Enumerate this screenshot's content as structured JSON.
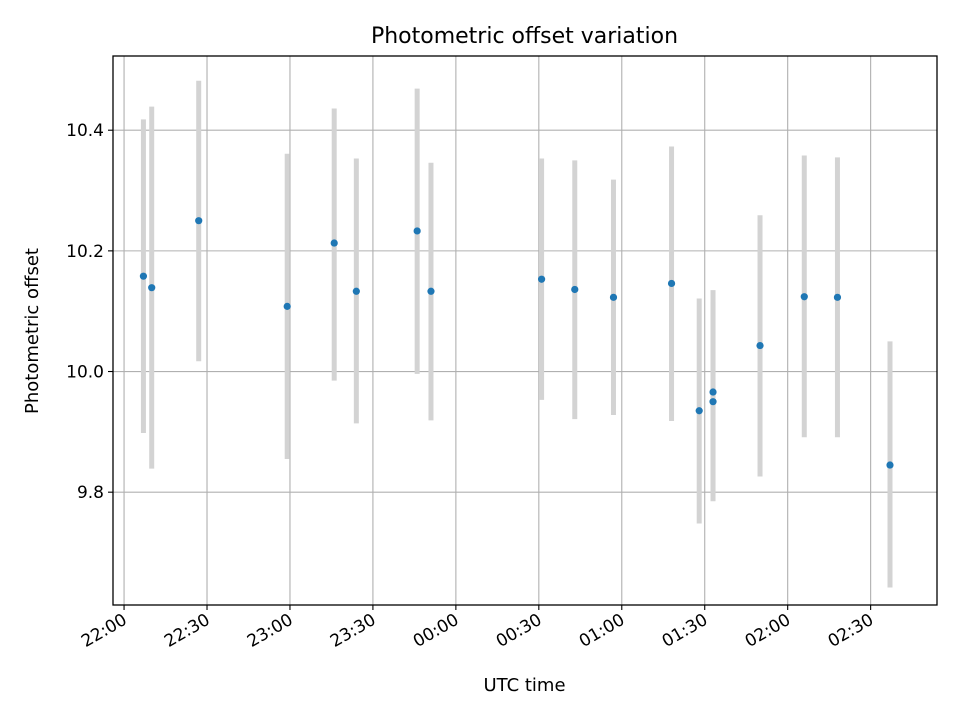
{
  "chart_data": {
    "type": "scatter",
    "title": "Photometric offset variation",
    "xlabel": "UTC time",
    "ylabel": "Photometric offset",
    "x_type": "time",
    "x_start_label": "22:00",
    "xlim_minutes": [
      -4,
      294
    ],
    "ylim": [
      9.613,
      10.523
    ],
    "y_ticks": [
      9.8,
      10.0,
      10.2,
      10.4
    ],
    "y_tick_labels": [
      "9.8",
      "10.0",
      "10.2",
      "10.4"
    ],
    "x_ticks": [
      "22:00",
      "22:30",
      "23:00",
      "23:30",
      "00:00",
      "00:30",
      "01:00",
      "01:30",
      "02:00",
      "02:30"
    ],
    "grid": true,
    "marker_color": "#1f77b4",
    "errorbar_color": "#d3d3d3",
    "points": [
      {
        "time": "22:07",
        "value": 10.158,
        "lower": 9.898,
        "upper": 10.418
      },
      {
        "time": "22:10",
        "value": 10.139,
        "lower": 9.839,
        "upper": 10.439
      },
      {
        "time": "22:27",
        "value": 10.25,
        "lower": 10.017,
        "upper": 10.482
      },
      {
        "time": "22:59",
        "value": 10.108,
        "lower": 9.855,
        "upper": 10.361
      },
      {
        "time": "23:16",
        "value": 10.213,
        "lower": 9.985,
        "upper": 10.436
      },
      {
        "time": "23:24",
        "value": 10.133,
        "lower": 9.914,
        "upper": 10.353
      },
      {
        "time": "23:46",
        "value": 10.233,
        "lower": 9.996,
        "upper": 10.469
      },
      {
        "time": "23:51",
        "value": 10.133,
        "lower": 9.919,
        "upper": 10.346
      },
      {
        "time": "00:31",
        "value": 10.153,
        "lower": 9.953,
        "upper": 10.353
      },
      {
        "time": "00:43",
        "value": 10.136,
        "lower": 9.921,
        "upper": 10.35
      },
      {
        "time": "00:57",
        "value": 10.123,
        "lower": 9.928,
        "upper": 10.318
      },
      {
        "time": "01:18",
        "value": 10.146,
        "lower": 9.918,
        "upper": 10.373
      },
      {
        "time": "01:28",
        "value": 9.935,
        "lower": 9.748,
        "upper": 10.121
      },
      {
        "time": "01:33",
        "value": 9.95,
        "lower": 9.785,
        "upper": 10.115
      },
      {
        "time": "01:33",
        "value": 9.966,
        "lower": 9.797,
        "upper": 10.135
      },
      {
        "time": "01:50",
        "value": 10.043,
        "lower": 9.826,
        "upper": 10.259
      },
      {
        "time": "02:06",
        "value": 10.124,
        "lower": 9.891,
        "upper": 10.358
      },
      {
        "time": "02:18",
        "value": 10.123,
        "lower": 9.891,
        "upper": 10.355
      },
      {
        "time": "02:37",
        "value": 9.845,
        "lower": 9.642,
        "upper": 10.05
      }
    ]
  }
}
